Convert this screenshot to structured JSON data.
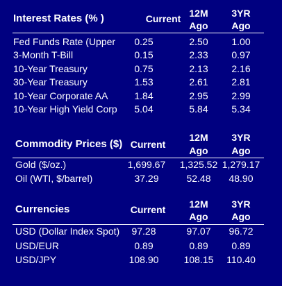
{
  "interest_rates": {
    "title": "Interest Rates (% )",
    "col_current": "Current",
    "col_12m_line1": "12M",
    "col_12m_line2": "Ago",
    "col_3yr_line1": "3YR",
    "col_3yr_line2": "Ago",
    "rows": [
      {
        "label": "Fed Funds Rate (Upper",
        "current": "0.25",
        "m12": "2.50",
        "yr3": "1.00"
      },
      {
        "label": "3-Month T-Bill",
        "current": "0.15",
        "m12": "2.33",
        "yr3": "0.97"
      },
      {
        "label": "10-Year Treasury",
        "current": "0.75",
        "m12": "2.13",
        "yr3": "2.16"
      },
      {
        "label": "30-Year Treasury",
        "current": "1.53",
        "m12": "2.61",
        "yr3": "2.81"
      },
      {
        "label": "10-Year Corporate AA",
        "current": "1.84",
        "m12": "2.95",
        "yr3": "2.99"
      },
      {
        "label": "10-Year High Yield Corp",
        "current": "5.04",
        "m12": "5.84",
        "yr3": "5.34"
      }
    ]
  },
  "commodity_prices": {
    "title": "Commodity Prices ($)",
    "col_current": "Current",
    "col_12m_line1": "12M",
    "col_12m_line2": "Ago",
    "col_3yr_line1": "3YR",
    "col_3yr_line2": "Ago",
    "rows": [
      {
        "label": "Gold    ($/oz.)",
        "current": "1,699.67",
        "m12": "1,325.52",
        "yr3": "1,279.17"
      },
      {
        "label": "Oil (WTI, $/barrel)",
        "current": "37.29",
        "m12": "52.48",
        "yr3": "48.90"
      }
    ]
  },
  "currencies": {
    "title": "Currencies",
    "col_current": "Current",
    "col_12m_line1": "12M",
    "col_12m_line2": "Ago",
    "col_3yr_line1": "3YR",
    "col_3yr_line2": "Ago",
    "rows": [
      {
        "label": "USD (Dollar Index Spot)",
        "current": "97.28",
        "m12": "97.07",
        "yr3": "96.72"
      },
      {
        "label": "USD/EUR",
        "current": "0.89",
        "m12": "0.89",
        "yr3": "0.89"
      },
      {
        "label": "USD/JPY",
        "current": "108.90",
        "m12": "108.15",
        "yr3": "110.40"
      }
    ]
  },
  "colors": {
    "background": "#000080",
    "text": "#ffffff"
  }
}
